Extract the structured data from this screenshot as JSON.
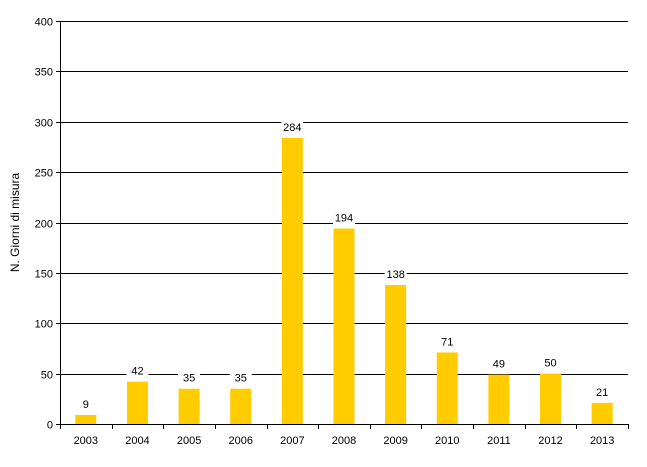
{
  "chart_data": {
    "type": "bar",
    "categories": [
      "2003",
      "2004",
      "2005",
      "2006",
      "2007",
      "2008",
      "2009",
      "2010",
      "2011",
      "2012",
      "2013"
    ],
    "values": [
      9,
      42,
      35,
      35,
      284,
      194,
      138,
      71,
      49,
      50,
      21
    ],
    "title": "",
    "xlabel": "",
    "ylabel": "N. Giorni di misura",
    "ylim": [
      0,
      400
    ],
    "yticks": [
      0,
      50,
      100,
      150,
      200,
      250,
      300,
      350,
      400
    ],
    "grid": true,
    "legend": "none",
    "bar_color": "#FFCC00"
  }
}
